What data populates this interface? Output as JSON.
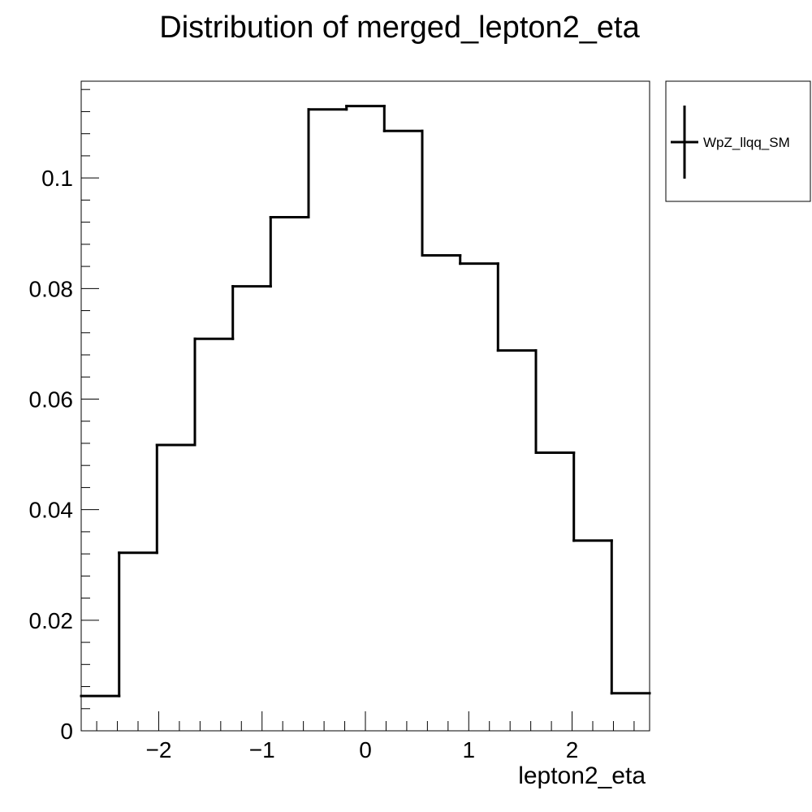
{
  "chart_data": {
    "type": "histogram",
    "title": "Distribution of merged_lepton2_eta",
    "xlabel": "lepton2_eta",
    "ylabel": "",
    "xlim": [
      -2.75,
      2.75
    ],
    "ylim": [
      0,
      0.1175
    ],
    "xticks": [
      {
        "value": -2,
        "label": "−2"
      },
      {
        "value": -1,
        "label": "−1"
      },
      {
        "value": 0,
        "label": "0"
      },
      {
        "value": 1,
        "label": "1"
      },
      {
        "value": 2,
        "label": "2"
      }
    ],
    "yticks": [
      {
        "value": 0,
        "label": "0"
      },
      {
        "value": 0.02,
        "label": "0.02"
      },
      {
        "value": 0.04,
        "label": "0.04"
      },
      {
        "value": 0.06,
        "label": "0.06"
      },
      {
        "value": 0.08,
        "label": "0.08"
      },
      {
        "value": 0.1,
        "label": "0.1"
      }
    ],
    "bin_edges": [
      -2.75,
      -2.383,
      -2.017,
      -1.65,
      -1.283,
      -0.917,
      -0.55,
      -0.183,
      0.183,
      0.55,
      0.917,
      1.283,
      1.65,
      2.017,
      2.383,
      2.75
    ],
    "series": [
      {
        "name": "WpZ_llqq_SM",
        "values": [
          0.0063,
          0.0322,
          0.0517,
          0.0709,
          0.0804,
          0.0929,
          0.1124,
          0.113,
          0.1085,
          0.086,
          0.0845,
          0.0688,
          0.0503,
          0.0344,
          0.0068
        ]
      }
    ],
    "legend_position": "outside-right-top",
    "grid": false
  }
}
